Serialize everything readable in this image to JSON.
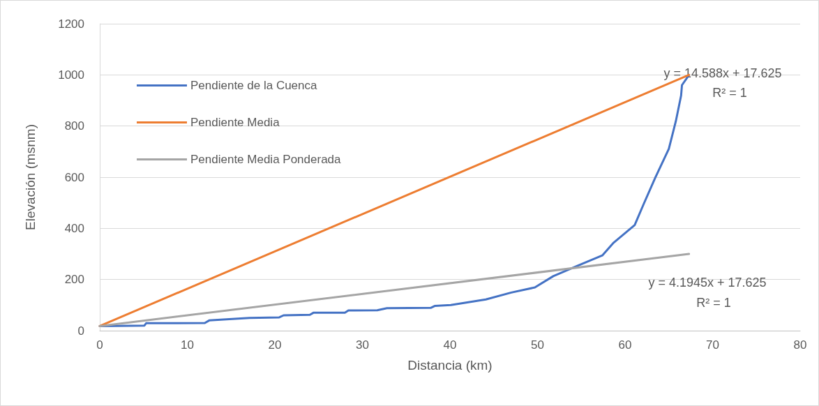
{
  "chart_data": {
    "type": "line",
    "xlabel": "Distancia (km)",
    "ylabel": "Elevación (msnm)",
    "xlim": [
      0,
      80
    ],
    "xticks": [
      0,
      10,
      20,
      30,
      40,
      50,
      60,
      70,
      80
    ],
    "ylim": [
      0,
      1200
    ],
    "yticks": [
      0,
      200,
      400,
      600,
      800,
      1000,
      1200
    ],
    "grid": "y",
    "legend": "top left",
    "marker": "none",
    "line_style": "solid",
    "series": [
      {
        "name": "Pendiente de la Cuenca",
        "color": "#4472c4",
        "x": [
          0,
          5.1,
          5.3,
          12.0,
          12.5,
          17.1,
          20.5,
          21.0,
          24.0,
          24.4,
          28.0,
          28.4,
          31.7,
          32.8,
          37.8,
          38.3,
          40.1,
          44.1,
          47.0,
          49.7,
          51.8,
          54.4,
          57.4,
          58.7,
          61.1,
          62.1,
          63.5,
          65.0,
          65.8,
          66.4,
          66.5,
          67.3
        ],
        "values": [
          18,
          20,
          29,
          30,
          40,
          50,
          52,
          60,
          62,
          70,
          70,
          79,
          80,
          88,
          89,
          97,
          100,
          122,
          149,
          169,
          213,
          251,
          294,
          344,
          413,
          493,
          602,
          711,
          819,
          919,
          960,
          999
        ]
      },
      {
        "name": "Pendiente Media",
        "color": "#ed7d31",
        "x": [
          0,
          67.3
        ],
        "values": [
          18,
          1000
        ]
      },
      {
        "name": "Pendiente Media Ponderada",
        "color": "#a5a5a5",
        "x": [
          0,
          67.3
        ],
        "values": [
          18,
          300
        ]
      }
    ],
    "annotations": [
      "y = 14.588x + 17.625",
      "R² = 1",
      "y = 4.1945x + 17.625",
      "R² = 1"
    ]
  }
}
